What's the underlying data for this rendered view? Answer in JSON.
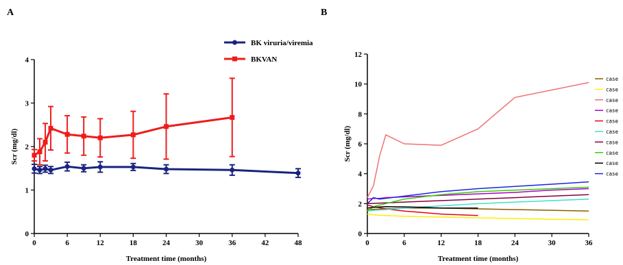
{
  "chart_data": [
    {
      "panel": "A",
      "type": "line",
      "xlabel": "Treatment time (months)",
      "ylabel": "Scr (mg/dl)",
      "xlim": [
        0,
        48
      ],
      "ylim": [
        0,
        4
      ],
      "xticks": [
        "0",
        "6",
        "12",
        "18",
        "24",
        "30",
        "36",
        "42",
        "48"
      ],
      "yticks": [
        "0",
        "1",
        "2",
        "3",
        "4"
      ],
      "legend_position": "top-right",
      "series": [
        {
          "name": "BK viruria/viremia",
          "color": "#1a237e",
          "marker": "circle",
          "points": [
            {
              "x": 0,
              "y": 1.49,
              "err": 0.1
            },
            {
              "x": 1,
              "y": 1.46,
              "err": 0.08
            },
            {
              "x": 2,
              "y": 1.49,
              "err": 0.08
            },
            {
              "x": 3,
              "y": 1.46,
              "err": 0.08
            },
            {
              "x": 6,
              "y": 1.54,
              "err": 0.1
            },
            {
              "x": 9,
              "y": 1.5,
              "err": 0.08
            },
            {
              "x": 12,
              "y": 1.53,
              "err": 0.12
            },
            {
              "x": 18,
              "y": 1.53,
              "err": 0.08
            },
            {
              "x": 24,
              "y": 1.48,
              "err": 0.1
            },
            {
              "x": 36,
              "y": 1.46,
              "err": 0.12
            },
            {
              "x": 48,
              "y": 1.39,
              "err": 0.1
            }
          ]
        },
        {
          "name": "BKVAN",
          "color": "#ee1c1c",
          "marker": "square",
          "points": [
            {
              "x": 0,
              "y": 1.8,
              "err": 0.13
            },
            {
              "x": 1,
              "y": 1.88,
              "err": 0.3
            },
            {
              "x": 2,
              "y": 2.1,
              "err": 0.43
            },
            {
              "x": 3,
              "y": 2.42,
              "err": 0.5
            },
            {
              "x": 6,
              "y": 2.28,
              "err": 0.43
            },
            {
              "x": 9,
              "y": 2.24,
              "err": 0.44
            },
            {
              "x": 12,
              "y": 2.2,
              "err": 0.44
            },
            {
              "x": 18,
              "y": 2.27,
              "err": 0.54
            },
            {
              "x": 24,
              "y": 2.46,
              "err": 0.75
            },
            {
              "x": 36,
              "y": 2.67,
              "err": 0.9
            }
          ]
        }
      ]
    },
    {
      "panel": "B",
      "type": "line",
      "xlabel": "Treatment time (months)",
      "ylabel": "Scr (mg/dl)",
      "xlim": [
        0,
        36
      ],
      "ylim": [
        0,
        12
      ],
      "xticks": [
        "0",
        "6",
        "12",
        "18",
        "24",
        "30",
        "36"
      ],
      "yticks": [
        "0",
        "2",
        "4",
        "6",
        "8",
        "10",
        "12"
      ],
      "legend_position": "right",
      "series": [
        {
          "name": "case",
          "color": "#8b5a00",
          "x": [
            0,
            3,
            6,
            12,
            18,
            24,
            30,
            36
          ],
          "y": [
            1.6,
            1.65,
            1.7,
            1.7,
            1.65,
            1.6,
            1.55,
            1.5
          ]
        },
        {
          "name": "case",
          "color": "#ffee00",
          "x": [
            0,
            1,
            3,
            6,
            12,
            18,
            24,
            30,
            36
          ],
          "y": [
            1.3,
            1.25,
            1.2,
            1.15,
            1.1,
            1.05,
            1.0,
            0.95,
            0.92
          ]
        },
        {
          "name": "case",
          "color": "#f07070",
          "x": [
            0,
            1,
            2,
            3,
            6,
            12,
            18,
            24,
            36
          ],
          "y": [
            2.4,
            3.2,
            5.2,
            6.6,
            6.0,
            5.9,
            7.0,
            9.1,
            10.1
          ]
        },
        {
          "name": "case",
          "color": "#b000c8",
          "x": [
            0,
            1,
            2,
            3,
            6,
            12,
            18,
            24,
            30,
            36
          ],
          "y": [
            2.3,
            2.35,
            2.35,
            2.4,
            2.45,
            2.55,
            2.65,
            2.75,
            2.9,
            3.0
          ]
        },
        {
          "name": "case",
          "color": "#e8001c",
          "x": [
            0,
            1,
            3,
            6,
            9,
            12,
            18
          ],
          "y": [
            1.9,
            1.8,
            1.65,
            1.5,
            1.4,
            1.3,
            1.2
          ]
        },
        {
          "name": "case",
          "color": "#40e0c8",
          "x": [
            0,
            1,
            3,
            6,
            12,
            18,
            24,
            30,
            36
          ],
          "y": [
            1.5,
            1.55,
            1.6,
            1.7,
            1.85,
            2.0,
            2.1,
            2.2,
            2.3
          ]
        },
        {
          "name": "case",
          "color": "#800040",
          "x": [
            0,
            3,
            6,
            12,
            18,
            24,
            30,
            36
          ],
          "y": [
            2.0,
            2.05,
            2.1,
            2.2,
            2.3,
            2.4,
            2.5,
            2.6
          ]
        },
        {
          "name": "case",
          "color": "#30d000",
          "x": [
            0,
            1,
            3,
            6,
            12,
            18,
            24,
            30,
            36
          ],
          "y": [
            1.5,
            1.8,
            2.0,
            2.3,
            2.6,
            2.8,
            2.9,
            3.0,
            3.1
          ]
        },
        {
          "name": "case",
          "color": "#000000",
          "x": [
            0,
            1,
            3,
            6,
            9,
            12,
            18
          ],
          "y": [
            1.7,
            1.75,
            1.8,
            1.78,
            1.75,
            1.7,
            1.7
          ]
        },
        {
          "name": "case",
          "color": "#1a24e0",
          "x": [
            0,
            1,
            2,
            3,
            6,
            12,
            18,
            24,
            30,
            36
          ],
          "y": [
            2.0,
            2.4,
            2.3,
            2.35,
            2.5,
            2.8,
            3.0,
            3.15,
            3.3,
            3.45
          ]
        }
      ]
    }
  ],
  "panel_labels": {
    "a": "A",
    "b": "B"
  }
}
